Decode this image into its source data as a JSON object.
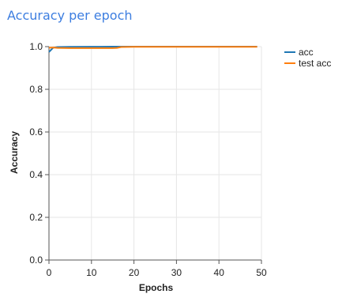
{
  "chart_data": {
    "type": "line",
    "title": "Accuracy per epoch",
    "xlabel": "Epochs",
    "ylabel": "Accuracy",
    "xlim": [
      0,
      50
    ],
    "ylim": [
      0.0,
      1.0
    ],
    "xticks": [
      0,
      10,
      20,
      30,
      40,
      50
    ],
    "yticks": [
      0.0,
      0.2,
      0.4,
      0.6,
      0.8,
      1.0
    ],
    "xtick_labels": [
      "0",
      "10",
      "20",
      "30",
      "40",
      "50"
    ],
    "ytick_labels": [
      "0.0",
      "0.2",
      "0.4",
      "0.6",
      "0.8",
      "1.0"
    ],
    "grid": true,
    "legend_position": "right",
    "series": [
      {
        "name": "acc",
        "color": "#1f77b4",
        "x": [
          0,
          1,
          2,
          5,
          10,
          15,
          20,
          30,
          40,
          49
        ],
        "y": [
          0.975,
          0.995,
          0.998,
          0.999,
          0.9995,
          1.0,
          1.0,
          1.0,
          1.0,
          1.0
        ]
      },
      {
        "name": "test acc",
        "color": "#ff7f0e",
        "x": [
          0,
          1,
          2,
          5,
          10,
          15,
          16,
          17,
          20,
          30,
          40,
          49
        ],
        "y": [
          0.995,
          0.996,
          0.994,
          0.993,
          0.993,
          0.993,
          0.994,
          0.998,
          0.999,
          0.999,
          0.999,
          0.999
        ]
      }
    ]
  }
}
